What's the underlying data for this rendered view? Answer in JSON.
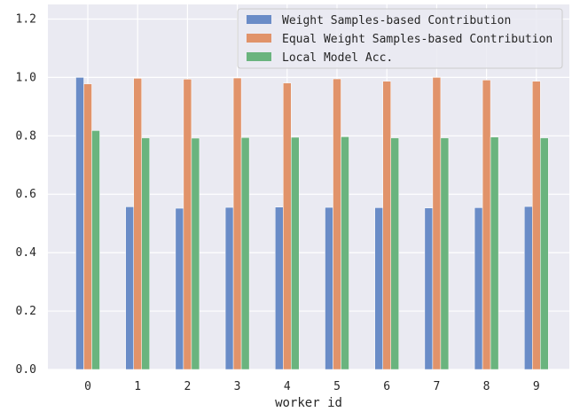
{
  "chart_data": {
    "type": "bar",
    "xlabel": "worker id",
    "ylabel": "",
    "ylim": [
      0,
      1.25
    ],
    "yticks": [
      0.0,
      0.2,
      0.4,
      0.6,
      0.8,
      1.0,
      1.2
    ],
    "ytick_labels": [
      "0.0",
      "0.2",
      "0.4",
      "0.6",
      "0.8",
      "1.0",
      "1.2"
    ],
    "categories": [
      "0",
      "1",
      "2",
      "3",
      "4",
      "5",
      "6",
      "7",
      "8",
      "9"
    ],
    "grid": true,
    "legend_position": "top-right",
    "series": [
      {
        "name": "Weight Samples-based Contribution",
        "color": "#6a8cc7",
        "values": [
          1.0,
          0.557,
          0.552,
          0.555,
          0.556,
          0.555,
          0.554,
          0.553,
          0.554,
          0.558
        ]
      },
      {
        "name": "Equal Weight Samples-based Contribution",
        "color": "#e1936a",
        "values": [
          0.978,
          0.997,
          0.994,
          0.998,
          0.981,
          0.995,
          0.987,
          1.0,
          0.991,
          0.987
        ]
      },
      {
        "name": "Local Model Acc.",
        "color": "#6ab47e",
        "values": [
          0.818,
          0.793,
          0.792,
          0.794,
          0.795,
          0.797,
          0.793,
          0.793,
          0.796,
          0.793
        ]
      }
    ]
  }
}
